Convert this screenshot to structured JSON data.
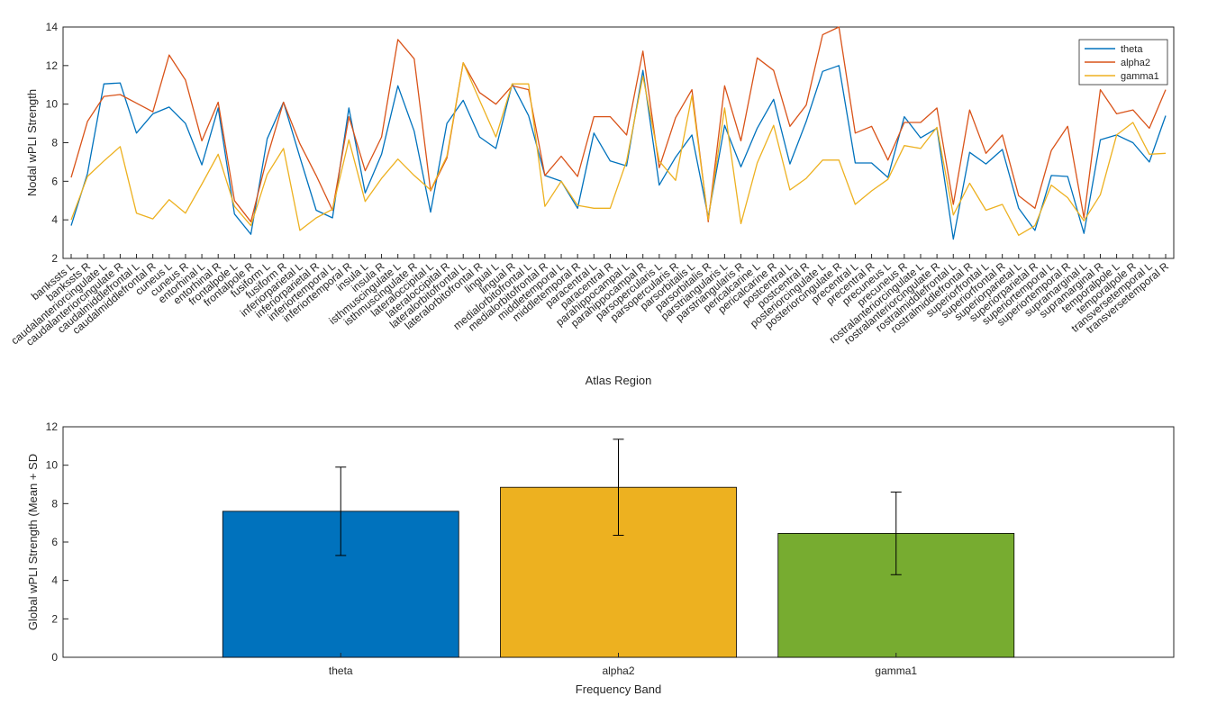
{
  "chart_data": [
    {
      "type": "line",
      "title": "",
      "xlabel": "Atlas Region",
      "ylabel": "Nodal wPLI Strength",
      "ylim": [
        2,
        14
      ],
      "yticks": [
        2,
        4,
        6,
        8,
        10,
        12,
        14
      ],
      "legend_position": "top-right",
      "grid": false,
      "categories": [
        "bankssts L",
        "bankssts R",
        "caudalanteriorcingulate L",
        "caudalanteriorcingulate R",
        "caudalmiddlefrontal L",
        "caudalmiddlefrontal R",
        "cuneus L",
        "cuneus R",
        "entorhinal L",
        "entorhinal R",
        "frontalpole L",
        "frontalpole R",
        "fusiform L",
        "fusiform R",
        "inferiorparietal L",
        "inferiorparietal R",
        "inferiortemporal L",
        "inferiortemporal R",
        "insula L",
        "insula R",
        "isthmuscingulate L",
        "isthmuscingulate R",
        "lateraloccipital L",
        "lateraloccipital R",
        "lateralorbitofrontal L",
        "lateralorbitofrontal R",
        "lingual L",
        "lingual R",
        "medialorbitofrontal L",
        "medialorbitofrontal R",
        "middletemporal L",
        "middletemporal R",
        "paracentral L",
        "paracentral R",
        "parahippocampal L",
        "parahippocampal R",
        "parsopercularis L",
        "parsopercularis R",
        "parsorbitalis L",
        "parsorbitalis R",
        "parstriangularis L",
        "parstriangularis R",
        "pericalcarine L",
        "pericalcarine R",
        "postcentral L",
        "postcentral R",
        "posteriorcingulate L",
        "posteriorcingulate R",
        "precentral L",
        "precentral R",
        "precuneus L",
        "precuneus R",
        "rostralanteriorcingulate L",
        "rostralanteriorcingulate R",
        "rostralmiddlefrontal L",
        "rostralmiddlefrontal R",
        "superiorfrontal L",
        "superiorfrontal R",
        "superiorparietal L",
        "superiorparietal R",
        "superiortemporal L",
        "superiortemporal R",
        "supramarginal L",
        "supramarginal R",
        "temporalpole L",
        "temporalpole R",
        "transversetemporal L",
        "transversetemporal R"
      ],
      "series": [
        {
          "name": "theta",
          "color": "#0072BD",
          "values": [
            3.7,
            6.4,
            11.05,
            11.1,
            8.5,
            9.5,
            9.85,
            9.0,
            6.85,
            9.8,
            4.3,
            3.25,
            8.2,
            10.1,
            7.25,
            4.5,
            4.1,
            9.8,
            5.4,
            7.4,
            10.95,
            8.6,
            4.4,
            9.0,
            10.2,
            8.3,
            7.7,
            11.05,
            9.4,
            6.3,
            6.0,
            4.6,
            8.5,
            7.05,
            6.8,
            11.75,
            5.8,
            7.25,
            8.4,
            4.15,
            8.9,
            6.75,
            8.75,
            10.25,
            6.9,
            9.1,
            11.7,
            12.0,
            6.95,
            6.95,
            6.2,
            9.35,
            8.25,
            8.75,
            3.0,
            7.5,
            6.9,
            7.65,
            4.6,
            3.45,
            6.3,
            6.25,
            3.3,
            8.15,
            8.4,
            8.0,
            7.0,
            9.4
          ]
        },
        {
          "name": "alpha2",
          "color": "#D95319",
          "values": [
            6.2,
            9.1,
            10.4,
            10.5,
            10.05,
            9.6,
            12.55,
            11.25,
            8.1,
            10.1,
            5.0,
            3.9,
            7.25,
            10.1,
            7.95,
            6.3,
            4.5,
            9.35,
            6.55,
            8.3,
            13.35,
            12.35,
            5.5,
            7.2,
            12.15,
            10.6,
            10.0,
            10.95,
            10.75,
            6.3,
            7.3,
            6.25,
            9.35,
            9.35,
            8.4,
            12.75,
            6.7,
            9.3,
            10.75,
            3.9,
            10.95,
            8.1,
            12.4,
            11.75,
            8.85,
            9.95,
            13.6,
            14.0,
            8.5,
            8.85,
            7.1,
            9.05,
            9.05,
            9.8,
            4.8,
            9.7,
            7.45,
            8.4,
            5.25,
            4.6,
            7.6,
            8.85,
            4.1,
            10.75,
            9.5,
            9.7,
            8.75,
            10.75
          ]
        },
        {
          "name": "gamma1",
          "color": "#EDB120",
          "values": [
            4.0,
            6.25,
            7.05,
            7.8,
            4.35,
            4.05,
            5.05,
            4.35,
            5.85,
            7.4,
            4.7,
            3.7,
            6.35,
            7.7,
            3.45,
            4.1,
            4.55,
            8.15,
            4.95,
            6.15,
            7.15,
            6.3,
            5.55,
            7.3,
            12.15,
            10.2,
            8.3,
            11.05,
            11.05,
            4.7,
            6.0,
            4.75,
            4.6,
            4.6,
            7.05,
            11.45,
            7.05,
            6.05,
            10.45,
            4.0,
            9.8,
            3.8,
            6.95,
            8.9,
            5.55,
            6.15,
            7.1,
            7.1,
            4.8,
            5.5,
            6.1,
            7.85,
            7.7,
            8.8,
            4.25,
            5.9,
            4.5,
            4.8,
            3.2,
            3.7,
            5.8,
            5.15,
            3.95,
            5.3,
            8.4,
            9.05,
            7.4,
            7.45
          ]
        }
      ]
    },
    {
      "type": "bar",
      "title": "",
      "xlabel": "Frequency Band",
      "ylabel": "Global wPLI Strength (Mean + SD",
      "ylim": [
        0,
        12
      ],
      "yticks": [
        0,
        2,
        4,
        6,
        8,
        10,
        12
      ],
      "grid": false,
      "categories": [
        "theta",
        "alpha2",
        "gamma1"
      ],
      "values": [
        7.6,
        8.85,
        6.45
      ],
      "error_sd": [
        2.3,
        2.5,
        2.15
      ],
      "colors": [
        "#0072BD",
        "#EDB120",
        "#77AC30"
      ]
    }
  ]
}
